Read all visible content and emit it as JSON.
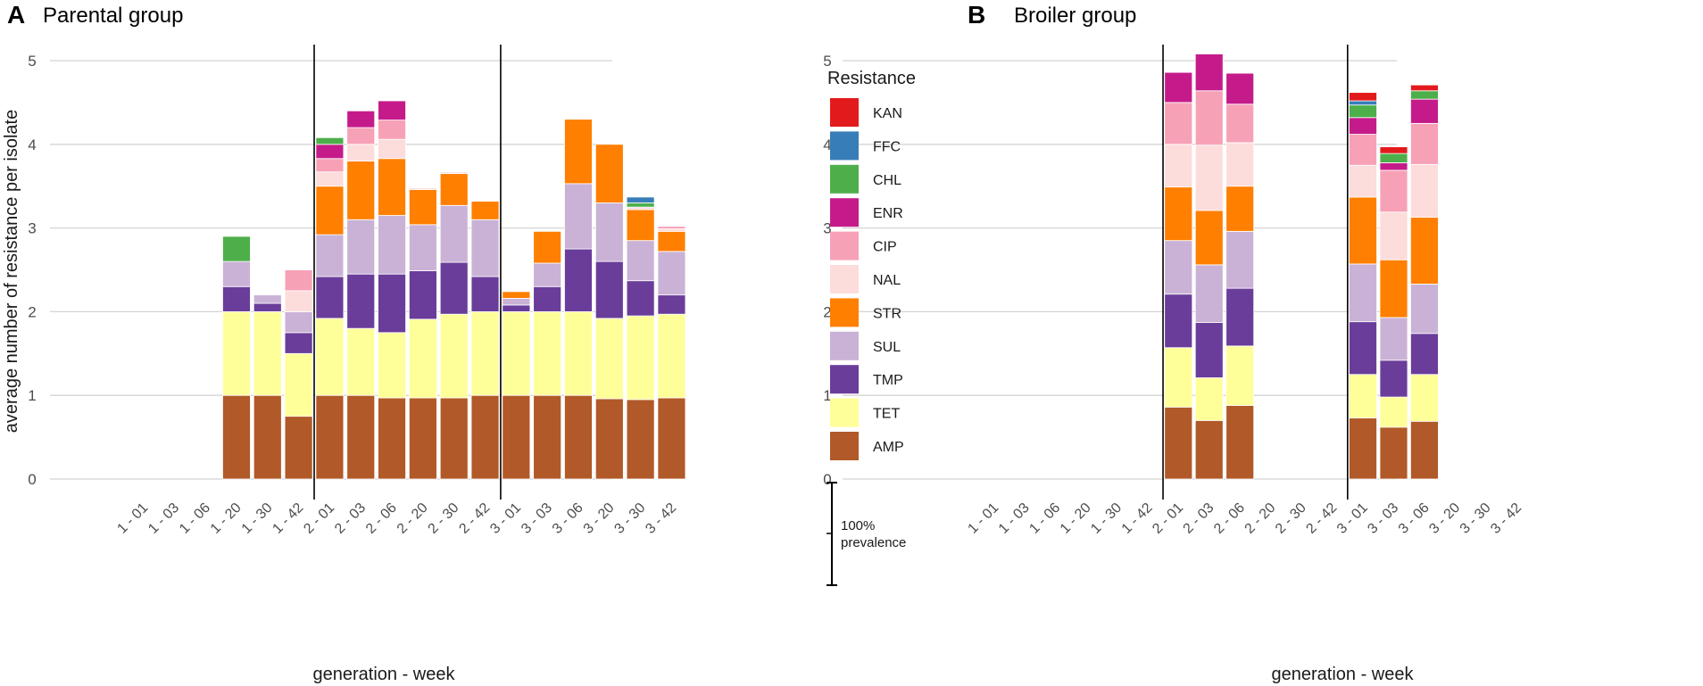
{
  "colors": {
    "AMP": "#B15928",
    "TET": "#FFFF99",
    "TMP": "#6A3D9A",
    "SUL": "#CAB2D6",
    "STR": "#FF7F00",
    "NAL": "#FDDCDC",
    "CIP": "#F7A1B7",
    "ENR": "#C51B8A",
    "CHL": "#4DAF4A",
    "FFC": "#377EB8",
    "KAN": "#E31A1C"
  },
  "legend": {
    "title": "Resistance",
    "items": [
      "KAN",
      "FFC",
      "CHL",
      "ENR",
      "CIP",
      "NAL",
      "STR",
      "SUL",
      "TMP",
      "TET",
      "AMP"
    ]
  },
  "scale_bar": {
    "line1": "100%",
    "line2": "prevalence"
  },
  "chart_data": [
    {
      "type": "bar",
      "stacked": true,
      "panel_letter": "A",
      "title": "Parental group",
      "xlabel": "generation - week",
      "ylabel": "average number of resistance per isolate",
      "ylim": [
        0,
        5
      ],
      "yticks": [
        0,
        1,
        2,
        3,
        4,
        5
      ],
      "categories": [
        "1 - 01",
        "1 - 03",
        "1 - 06",
        "1 - 20",
        "1 - 30",
        "1 - 42",
        "2 - 01",
        "2 - 03",
        "2 - 06",
        "2 - 20",
        "2 - 30",
        "2 - 42",
        "3 - 01",
        "3 - 03",
        "3 - 06",
        "3 - 20",
        "3 - 30",
        "3 - 42"
      ],
      "separators_after_index": [
        5,
        11
      ],
      "series": [
        {
          "name": "AMP",
          "values": [
            0,
            0,
            0,
            1.0,
            1.0,
            0.75,
            1.0,
            1.0,
            0.97,
            0.97,
            0.97,
            1.0,
            1.0,
            1.0,
            1.0,
            0.96,
            0.95,
            0.97
          ]
        },
        {
          "name": "TET",
          "values": [
            0,
            0,
            0,
            1.0,
            1.0,
            0.75,
            0.92,
            0.8,
            0.78,
            0.94,
            1.0,
            1.0,
            1.0,
            1.0,
            1.0,
            0.96,
            1.0,
            1.0
          ]
        },
        {
          "name": "TMP",
          "values": [
            0,
            0,
            0,
            0.3,
            0.1,
            0.25,
            0.5,
            0.65,
            0.7,
            0.58,
            0.62,
            0.42,
            0.08,
            0.3,
            0.75,
            0.68,
            0.42,
            0.23
          ]
        },
        {
          "name": "SUL",
          "values": [
            0,
            0,
            0,
            0.3,
            0.1,
            0.25,
            0.5,
            0.65,
            0.7,
            0.55,
            0.68,
            0.68,
            0.08,
            0.28,
            0.78,
            0.7,
            0.48,
            0.52
          ]
        },
        {
          "name": "STR",
          "values": [
            0,
            0,
            0,
            0,
            0,
            0,
            0.58,
            0.7,
            0.68,
            0.42,
            0.38,
            0.22,
            0.08,
            0.38,
            0.77,
            0.7,
            0.37,
            0.24
          ]
        },
        {
          "name": "NAL",
          "values": [
            0,
            0,
            0,
            0,
            0,
            0.25,
            0.17,
            0.2,
            0.23,
            0.02,
            0.02,
            0,
            0,
            0,
            0,
            0,
            0.03,
            0.03
          ]
        },
        {
          "name": "CIP",
          "values": [
            0,
            0,
            0,
            0,
            0,
            0.25,
            0.16,
            0.2,
            0.23,
            0,
            0,
            0,
            0,
            0,
            0,
            0,
            0,
            0.03
          ]
        },
        {
          "name": "ENR",
          "values": [
            0,
            0,
            0,
            0,
            0,
            0,
            0.17,
            0.2,
            0.23,
            0,
            0,
            0,
            0,
            0,
            0,
            0,
            0,
            0
          ]
        },
        {
          "name": "CHL",
          "values": [
            0,
            0,
            0,
            0.3,
            0,
            0,
            0.08,
            0,
            0,
            0,
            0,
            0,
            0,
            0,
            0,
            0,
            0.05,
            0
          ]
        },
        {
          "name": "FFC",
          "values": [
            0,
            0,
            0,
            0,
            0,
            0,
            0,
            0,
            0,
            0,
            0,
            0,
            0,
            0,
            0,
            0,
            0.07,
            0
          ]
        },
        {
          "name": "KAN",
          "values": [
            0,
            0,
            0,
            0,
            0,
            0,
            0,
            0,
            0,
            0,
            0,
            0,
            0,
            0,
            0,
            0,
            0,
            0
          ]
        }
      ]
    },
    {
      "type": "bar",
      "stacked": true,
      "panel_letter": "B",
      "title": "Broiler group",
      "xlabel": "generation - week",
      "ylabel": "",
      "ylim": [
        0,
        5
      ],
      "yticks": [
        0,
        1,
        2,
        3,
        4,
        5
      ],
      "categories": [
        "1 - 01",
        "1 - 03",
        "1 - 06",
        "1 - 20",
        "1 - 30",
        "1 - 42",
        "2 - 01",
        "2 - 03",
        "2 - 06",
        "2 - 20",
        "2 - 30",
        "2 - 42",
        "3 - 01",
        "3 - 03",
        "3 - 06",
        "3 - 20",
        "3 - 30",
        "3 - 42"
      ],
      "separators_after_index": [
        5,
        11
      ],
      "series": [
        {
          "name": "AMP",
          "values": [
            0,
            0,
            0,
            0,
            0,
            0,
            0.86,
            0.7,
            0.88,
            0,
            0,
            0,
            0.73,
            0.62,
            0.69,
            0,
            0,
            0
          ]
        },
        {
          "name": "TET",
          "values": [
            0,
            0,
            0,
            0,
            0,
            0,
            0.71,
            0.51,
            0.71,
            0,
            0,
            0,
            0.52,
            0.36,
            0.56,
            0,
            0,
            0
          ]
        },
        {
          "name": "TMP",
          "values": [
            0,
            0,
            0,
            0,
            0,
            0,
            0.64,
            0.66,
            0.69,
            0,
            0,
            0,
            0.63,
            0.44,
            0.49,
            0,
            0,
            0
          ]
        },
        {
          "name": "SUL",
          "values": [
            0,
            0,
            0,
            0,
            0,
            0,
            0.64,
            0.69,
            0.68,
            0,
            0,
            0,
            0.69,
            0.51,
            0.59,
            0,
            0,
            0
          ]
        },
        {
          "name": "STR",
          "values": [
            0,
            0,
            0,
            0,
            0,
            0,
            0.64,
            0.65,
            0.54,
            0,
            0,
            0,
            0.8,
            0.69,
            0.8,
            0,
            0,
            0
          ]
        },
        {
          "name": "NAL",
          "values": [
            0,
            0,
            0,
            0,
            0,
            0,
            0.51,
            0.78,
            0.52,
            0,
            0,
            0,
            0.38,
            0.57,
            0.63,
            0,
            0,
            0
          ]
        },
        {
          "name": "CIP",
          "values": [
            0,
            0,
            0,
            0,
            0,
            0,
            0.5,
            0.65,
            0.46,
            0,
            0,
            0,
            0.37,
            0.5,
            0.49,
            0,
            0,
            0
          ]
        },
        {
          "name": "ENR",
          "values": [
            0,
            0,
            0,
            0,
            0,
            0,
            0.36,
            0.44,
            0.37,
            0,
            0,
            0,
            0.2,
            0.09,
            0.29,
            0,
            0,
            0
          ]
        },
        {
          "name": "CHL",
          "values": [
            0,
            0,
            0,
            0,
            0,
            0,
            0,
            0,
            0,
            0,
            0,
            0,
            0.15,
            0.11,
            0.1,
            0,
            0,
            0
          ]
        },
        {
          "name": "FFC",
          "values": [
            0,
            0,
            0,
            0,
            0,
            0,
            0,
            0,
            0,
            0,
            0,
            0,
            0.05,
            0,
            0,
            0,
            0,
            0
          ]
        },
        {
          "name": "KAN",
          "values": [
            0,
            0,
            0,
            0,
            0,
            0,
            0,
            0,
            0,
            0,
            0,
            0,
            0.1,
            0.08,
            0.07,
            0,
            0,
            0
          ]
        }
      ]
    }
  ]
}
